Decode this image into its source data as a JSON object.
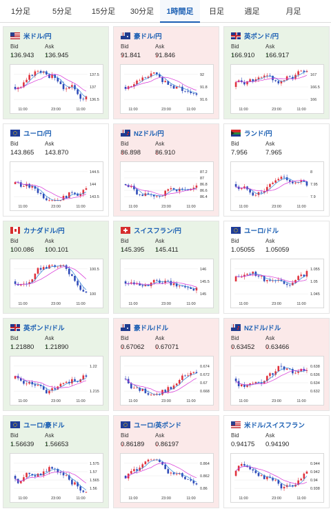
{
  "tabs": [
    {
      "label": "1分足",
      "active": false
    },
    {
      "label": "5分足",
      "active": false
    },
    {
      "label": "15分足",
      "active": false
    },
    {
      "label": "30分足",
      "active": false
    },
    {
      "label": "1時間足",
      "active": true
    },
    {
      "label": "日足",
      "active": false
    },
    {
      "label": "週足",
      "active": false
    },
    {
      "label": "月足",
      "active": false
    }
  ],
  "labels": {
    "bid": "Bid",
    "ask": "Ask"
  },
  "colors": {
    "up_bg": "#e9f3e6",
    "down_bg": "#fbe9e9",
    "link": "#1b5fb3",
    "candle_up": "#e0323c",
    "candle_down": "#2f4bb8",
    "ma_short": "#2b7fd6",
    "ma_long": "#d62fd6"
  },
  "pairs": [
    {
      "name": "米ドル/円",
      "flag": "us",
      "trend": "up",
      "bid": "136.943",
      "ask": "136.945",
      "bid_dir": "up",
      "ask_dir": "up",
      "yticks": [
        "137.5",
        "137",
        "136.5"
      ],
      "xticks": [
        "11:00",
        "23:00",
        "11:00"
      ]
    },
    {
      "name": "豪ドル/円",
      "flag": "au",
      "trend": "down",
      "bid": "91.841",
      "ask": "91.846",
      "bid_dir": "down",
      "ask_dir": "down",
      "yticks": [
        "92",
        "91.8",
        "91.6"
      ],
      "xticks": [
        "11:00",
        "23:00",
        "11:00"
      ]
    },
    {
      "name": "英ポンド/円",
      "flag": "gb",
      "trend": "up",
      "bid": "166.910",
      "ask": "166.917",
      "bid_dir": "up",
      "ask_dir": "up",
      "yticks": [
        "167",
        "166.5",
        "166"
      ],
      "xticks": [
        "11:00",
        "23:00",
        "11:00"
      ]
    },
    {
      "name": "ユーロ/円",
      "flag": "eu",
      "trend": "flat",
      "bid": "143.865",
      "ask": "143.870",
      "bid_dir": "",
      "ask_dir": "",
      "yticks": [
        "144.5",
        "144",
        "143.5"
      ],
      "xticks": [
        "11:00",
        "23:00",
        "11:00"
      ]
    },
    {
      "name": "NZドル/円",
      "flag": "nz",
      "trend": "down",
      "bid": "86.898",
      "ask": "86.910",
      "bid_dir": "down",
      "ask_dir": "down",
      "yticks": [
        "87.2",
        "87",
        "86.8",
        "86.6",
        "86.4"
      ],
      "xticks": [
        "11:00",
        "23:00",
        "11:00"
      ]
    },
    {
      "name": "ランド/円",
      "flag": "za",
      "trend": "flat",
      "bid": "7.956",
      "ask": "7.965",
      "bid_dir": "",
      "ask_dir": "",
      "yticks": [
        "8",
        "7.95",
        "7.9"
      ],
      "xticks": [
        "11:00",
        "23:00",
        "11:00"
      ]
    },
    {
      "name": "カナダドル/円",
      "flag": "ca",
      "trend": "up",
      "bid": "100.086",
      "ask": "100.101",
      "bid_dir": "up",
      "ask_dir": "up",
      "yticks": [
        "100.5",
        "100"
      ],
      "xticks": [
        "11:00",
        "23:00",
        "11:00"
      ]
    },
    {
      "name": "スイスフラン/円",
      "flag": "ch",
      "trend": "up",
      "bid": "145.395",
      "ask": "145.411",
      "bid_dir": "up",
      "ask_dir": "up",
      "yticks": [
        "146",
        "145.5",
        "145"
      ],
      "xticks": [
        "11:00",
        "23:00",
        "11:00"
      ]
    },
    {
      "name": "ユーロ/ドル",
      "flag": "eu",
      "trend": "flat",
      "bid": "1.05055",
      "ask": "1.05059",
      "bid_dir": "",
      "ask_dir": "",
      "yticks": [
        "1.055",
        "1.05",
        "1.045"
      ],
      "xticks": [
        "11:00",
        "23:00",
        "11:00"
      ]
    },
    {
      "name": "英ポンド/ドル",
      "flag": "gb",
      "trend": "up",
      "bid": "1.21880",
      "ask": "1.21890",
      "bid_dir": "up",
      "ask_dir": "up",
      "yticks": [
        "1.22",
        "1.215"
      ],
      "xticks": [
        "11:00",
        "23:00",
        "11:00"
      ]
    },
    {
      "name": "豪ドル/ドル",
      "flag": "au",
      "trend": "down",
      "bid": "0.67062",
      "ask": "0.67071",
      "bid_dir": "down",
      "ask_dir": "down",
      "yticks": [
        "0.674",
        "0.672",
        "0.67",
        "0.668"
      ],
      "xticks": [
        "11:00",
        "23:00",
        "11:00"
      ]
    },
    {
      "name": "NZドル/ドル",
      "flag": "nz",
      "trend": "down",
      "bid": "0.63452",
      "ask": "0.63466",
      "bid_dir": "down",
      "ask_dir": "down",
      "yticks": [
        "0.638",
        "0.636",
        "0.634",
        "0.632"
      ],
      "xticks": [
        "11:00",
        "23:00",
        "11:00"
      ]
    },
    {
      "name": "ユーロ/豪ドル",
      "flag": "eu",
      "trend": "up",
      "bid": "1.56639",
      "ask": "1.56653",
      "bid_dir": "up",
      "ask_dir": "up",
      "yticks": [
        "1.575",
        "1.57",
        "1.565",
        "1.56"
      ],
      "xticks": [
        "11:00",
        "23:00",
        "11:00"
      ]
    },
    {
      "name": "ユーロ/英ポンド",
      "flag": "eu",
      "trend": "down",
      "bid": "0.86189",
      "ask": "0.86197",
      "bid_dir": "down",
      "ask_dir": "down",
      "yticks": [
        "0.864",
        "0.862",
        "0.86"
      ],
      "xticks": [
        "11:00",
        "23:00",
        "11:00"
      ]
    },
    {
      "name": "米ドル/スイスフラン",
      "flag": "us",
      "trend": "flat",
      "bid": "0.94175",
      "ask": "0.94190",
      "bid_dir": "",
      "ask_dir": "",
      "yticks": [
        "0.944",
        "0.942",
        "0.94",
        "0.938"
      ],
      "xticks": [
        "11:00",
        "23:00",
        "11:00"
      ]
    }
  ]
}
